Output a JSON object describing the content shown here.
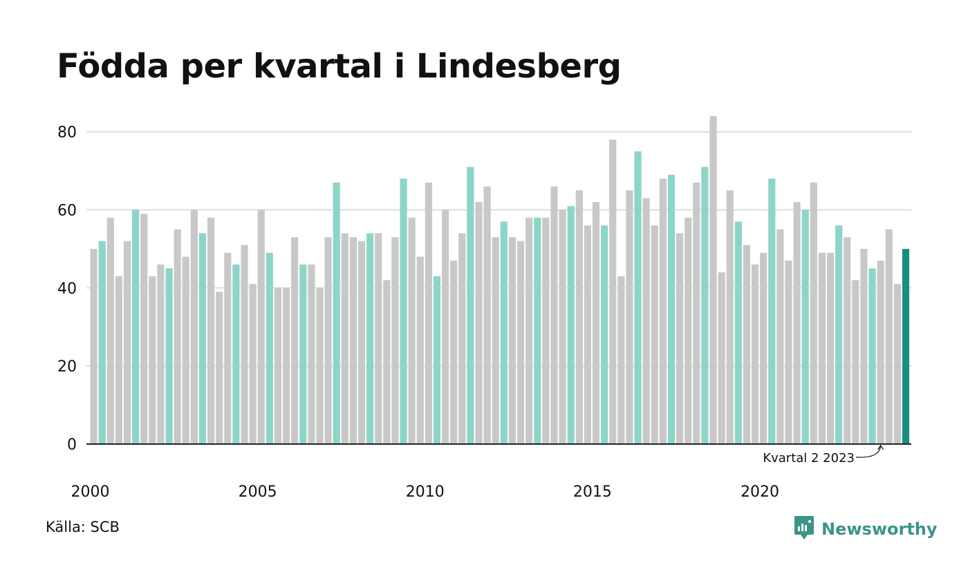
{
  "title": "Födda per kvartal i Lindesberg",
  "source": "Källa: SCB",
  "brand": {
    "name": "Newsworthy",
    "icon": "newsworthy-logo-icon"
  },
  "annotation": {
    "text": "Kvartal 2 2023",
    "target_index": 94
  },
  "colors": {
    "grey": "#c8c8c8",
    "highlight": "#8cd5c9",
    "latest": "#188f82",
    "grid": "#dedede",
    "axis": "#222222",
    "brand": "#3b9488"
  },
  "chart_data": {
    "type": "bar",
    "title": "Födda per kvartal i Lindesberg",
    "xlabel": "",
    "ylabel": "",
    "ylim": [
      0,
      84
    ],
    "yticks": [
      0,
      20,
      40,
      60,
      80
    ],
    "xtick_labels": [
      "2000",
      "2005",
      "2010",
      "2015",
      "2020"
    ],
    "start_year": 2000,
    "highlight_quarter": 2,
    "grid": true,
    "values": [
      50,
      52,
      58,
      43,
      52,
      60,
      59,
      43,
      46,
      45,
      55,
      48,
      60,
      54,
      58,
      39,
      49,
      46,
      51,
      41,
      60,
      49,
      40,
      40,
      53,
      46,
      46,
      40,
      53,
      67,
      54,
      53,
      52,
      54,
      54,
      42,
      53,
      68,
      58,
      48,
      67,
      43,
      60,
      47,
      54,
      71,
      62,
      66,
      53,
      57,
      53,
      52,
      58,
      58,
      58,
      66,
      60,
      61,
      65,
      56,
      62,
      56,
      78,
      43,
      65,
      75,
      63,
      56,
      68,
      69,
      54,
      58,
      67,
      71,
      84,
      44,
      65,
      57,
      51,
      46,
      49,
      68,
      55,
      47,
      62,
      60,
      67,
      49,
      49,
      56,
      53,
      42,
      50,
      45,
      47,
      55,
      41,
      50
    ]
  }
}
